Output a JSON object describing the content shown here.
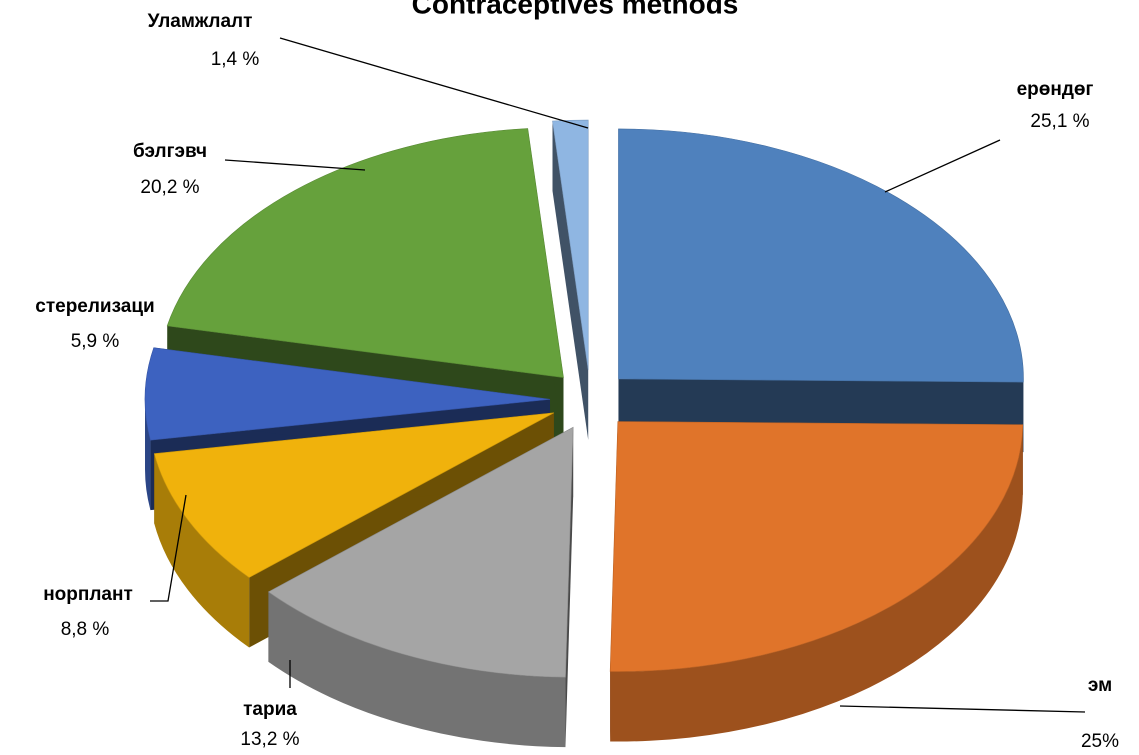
{
  "chart_data": {
    "type": "pie",
    "title": "Contraceptives methods",
    "categories": [
      "ерөндөг",
      "эм",
      "тариа",
      "норплант",
      "стерелизаци",
      "бэлгэвч",
      "Уламжлалт"
    ],
    "values": [
      25.1,
      25,
      13.2,
      8.8,
      5.9,
      20.2,
      1.4
    ],
    "value_labels": [
      "25,1 %",
      "25%",
      "13,2 %",
      "8,8 %",
      "5,9 %",
      "20,2 %",
      "1,4 %"
    ],
    "colors": [
      "#4f81bd",
      "#e0742a",
      "#a5a5a5",
      "#f0b20c",
      "#3d62c0",
      "#66a13c",
      "#8fb6e2"
    ]
  }
}
